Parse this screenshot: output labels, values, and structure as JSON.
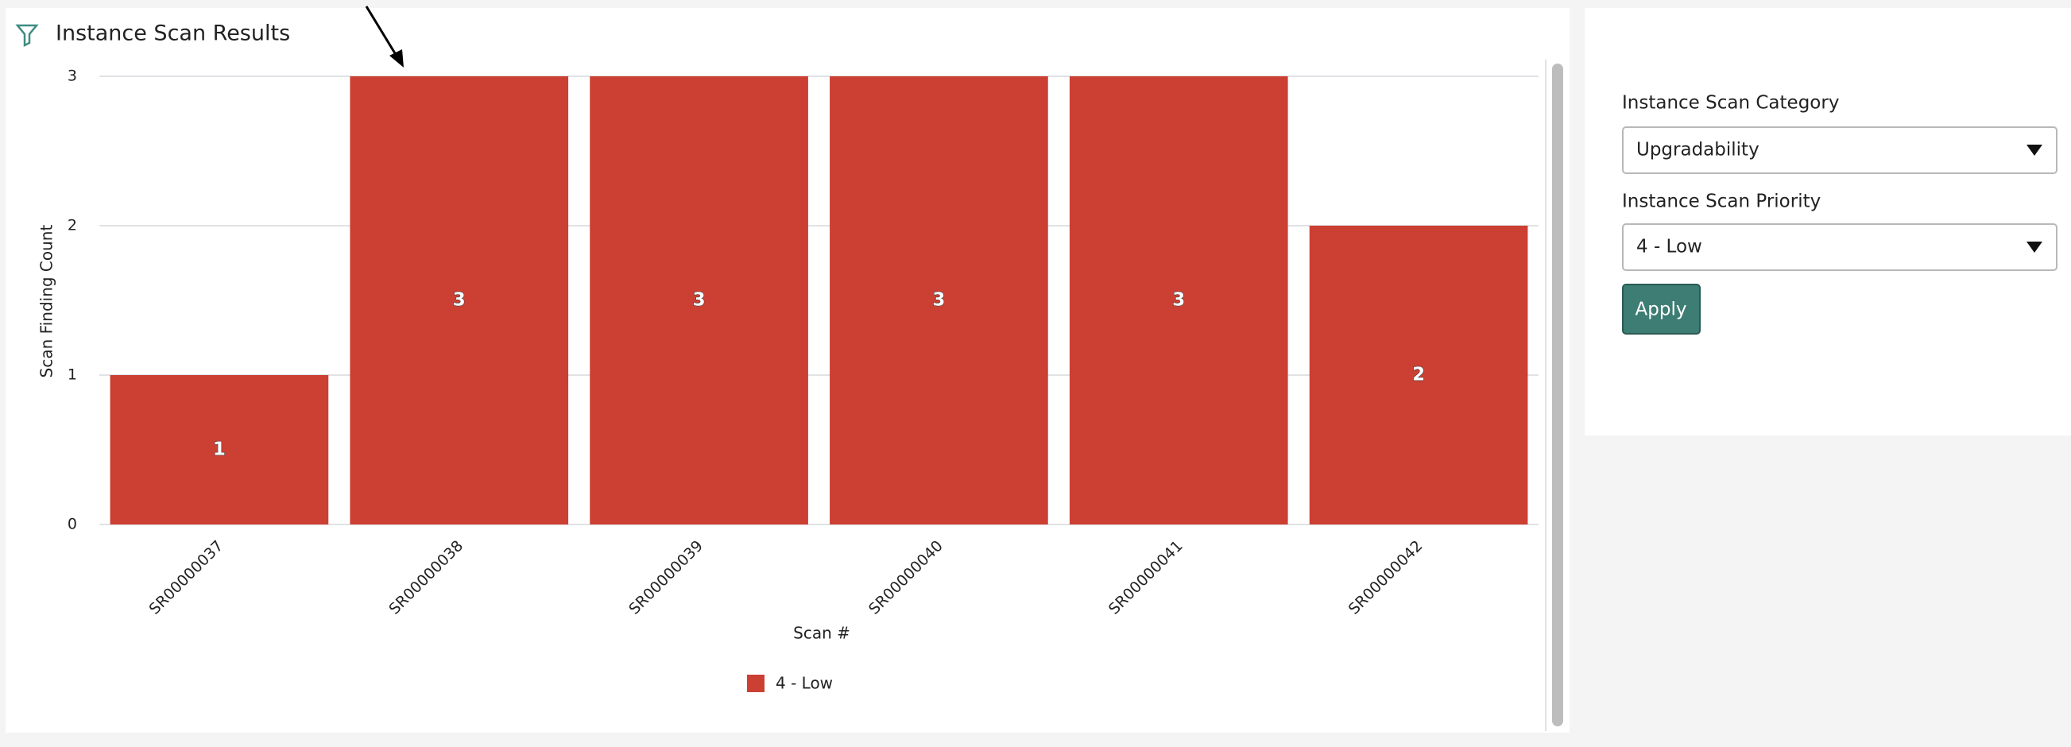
{
  "chart_data": {
    "type": "bar",
    "title": "Instance Scan Results",
    "categories": [
      "SR00000037",
      "SR00000038",
      "SR00000039",
      "SR00000040",
      "SR00000041",
      "SR00000042"
    ],
    "series": [
      {
        "name": "4 - Low",
        "color": "#cc3f33",
        "values": [
          1,
          3,
          3,
          3,
          3,
          2
        ]
      }
    ],
    "ylim": [
      0,
      3
    ],
    "yticks": [
      0,
      1,
      2,
      3
    ],
    "grid": true,
    "x_label": "Scan #",
    "y_label": "Scan Finding Count"
  },
  "filters": {
    "category_label": "Instance Scan Category",
    "category_value": "Upgradability",
    "priority_label": "Instance Scan Priority",
    "priority_value": "4 - Low",
    "apply": "Apply"
  }
}
